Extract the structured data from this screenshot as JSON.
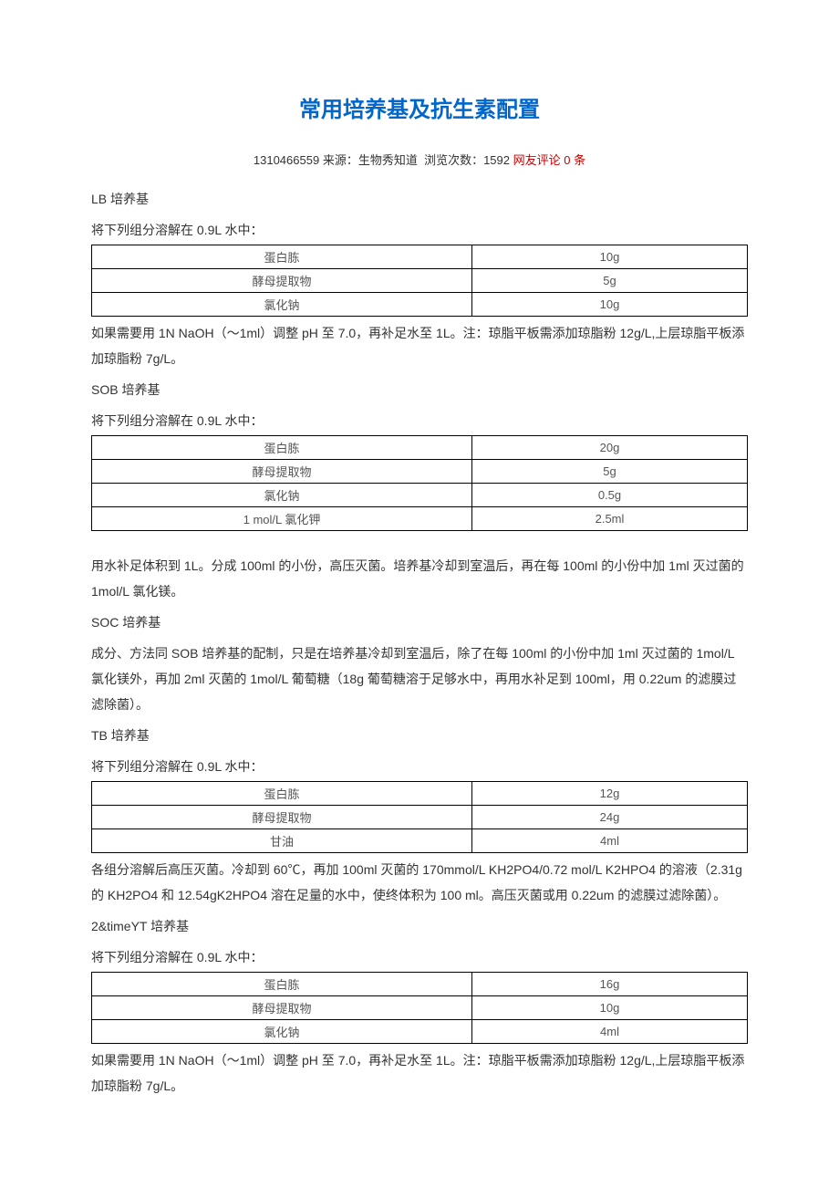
{
  "title": "常用培养基及抗生素配置",
  "meta": {
    "id": "1310466559",
    "source_label": "来源：生物秀知道",
    "views_label": "浏览次数：1592",
    "comments": "网友评论 0 条"
  },
  "dissolve_line": "将下列组分溶解在 0.9L 水中：",
  "lb": {
    "heading": "LB 培养基",
    "rows": [
      {
        "name": "蛋白胨",
        "val": "10g"
      },
      {
        "name": "酵母提取物",
        "val": "5g"
      },
      {
        "name": "氯化钠",
        "val": "10g"
      }
    ],
    "note": "如果需要用 1N NaOH（～1ml）调整 pH 至 7.0，再补足水至 1L。注：琼脂平板需添加琼脂粉 12g/L,上层琼脂平板添加琼脂粉 7g/L。"
  },
  "sob": {
    "heading": "SOB 培养基",
    "rows": [
      {
        "name": "蛋白胨",
        "val": "20g"
      },
      {
        "name": "酵母提取物",
        "val": "5g"
      },
      {
        "name": "氯化钠",
        "val": "0.5g"
      },
      {
        "name": "1 mol/L 氯化钾",
        "val": "2.5ml"
      }
    ],
    "note": "用水补足体积到 1L。分成 100ml 的小份，高压灭菌。培养基冷却到室温后，再在每 100ml 的小份中加 1ml 灭过菌的 1mol/L 氯化镁。"
  },
  "soc": {
    "heading": "SOC 培养基",
    "note": "成分、方法同 SOB 培养基的配制，只是在培养基冷却到室温后，除了在每 100ml 的小份中加 1ml 灭过菌的 1mol/L 氯化镁外，再加 2ml 灭菌的 1mol/L 葡萄糖（18g 葡萄糖溶于足够水中，再用水补足到 100ml，用 0.22um 的滤膜过滤除菌）。"
  },
  "tb": {
    "heading": "TB 培养基",
    "rows": [
      {
        "name": "蛋白胨",
        "val": "12g"
      },
      {
        "name": "酵母提取物",
        "val": "24g"
      },
      {
        "name": "甘油",
        "val": "4ml"
      }
    ],
    "note": "各组分溶解后高压灭菌。冷却到 60℃，再加 100ml 灭菌的 170mmol/L KH2PO4/0.72 mol/L K2HPO4 的溶液（2.31g 的 KH2PO4 和 12.54gK2HPO4 溶在足量的水中，使终体积为 100 ml。高压灭菌或用 0.22um 的滤膜过滤除菌）。"
  },
  "yt": {
    "heading": "2&timeYT 培养基",
    "rows": [
      {
        "name": "蛋白胨",
        "val": "16g"
      },
      {
        "name": "酵母提取物",
        "val": "10g"
      },
      {
        "name": "氯化钠",
        "val": "4ml"
      }
    ],
    "note": "如果需要用 1N NaOH（～1ml）调整 pH 至 7.0，再补足水至 1L。注：琼脂平板需添加琼脂粉 12g/L,上层琼脂平板添加琼脂粉 7g/L。"
  }
}
